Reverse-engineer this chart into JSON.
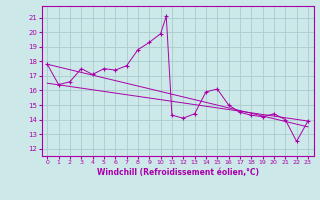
{
  "xlabel": "Windchill (Refroidissement éolien,°C)",
  "background_color": "#cce8e8",
  "grid_color": "#aacccc",
  "line_color": "#aa00aa",
  "marker": "+",
  "xlim": [
    -0.5,
    23.5
  ],
  "ylim": [
    11.5,
    21.8
  ],
  "yticks": [
    12,
    13,
    14,
    15,
    16,
    17,
    18,
    19,
    20,
    21
  ],
  "xticks": [
    0,
    1,
    2,
    3,
    4,
    5,
    6,
    7,
    8,
    9,
    10,
    11,
    12,
    13,
    14,
    15,
    16,
    17,
    18,
    19,
    20,
    21,
    22,
    23
  ],
  "series": [
    [
      0,
      17.8
    ],
    [
      1,
      16.4
    ],
    [
      2,
      16.6
    ],
    [
      3,
      17.5
    ],
    [
      4,
      17.1
    ],
    [
      5,
      17.5
    ],
    [
      6,
      17.4
    ],
    [
      7,
      17.7
    ],
    [
      8,
      18.8
    ],
    [
      9,
      19.3
    ],
    [
      10,
      19.9
    ],
    [
      10.5,
      21.1
    ],
    [
      11,
      14.3
    ],
    [
      12,
      14.1
    ],
    [
      13,
      14.4
    ],
    [
      14,
      15.9
    ],
    [
      15,
      16.1
    ],
    [
      16,
      15.0
    ],
    [
      17,
      14.5
    ],
    [
      18,
      14.3
    ],
    [
      19,
      14.2
    ],
    [
      20,
      14.4
    ],
    [
      21,
      14.0
    ],
    [
      22,
      12.5
    ],
    [
      23,
      13.9
    ]
  ],
  "trend_line1": [
    [
      0,
      17.8
    ],
    [
      23,
      13.5
    ]
  ],
  "trend_line2": [
    [
      0,
      16.5
    ],
    [
      23,
      13.9
    ]
  ]
}
